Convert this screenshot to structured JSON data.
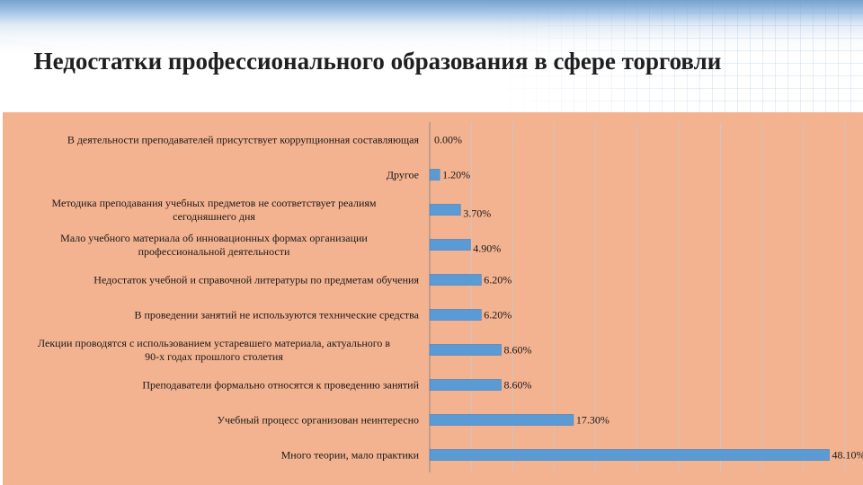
{
  "title": "Недостатки профессионального образования в сфере торговли",
  "colors": {
    "bar": "#5b9bd5",
    "bar_edge": "#3f7fbf",
    "plot_bg": "#f3b290",
    "grid": "#c9c9c9"
  },
  "chart_data": {
    "type": "bar",
    "orientation": "horizontal",
    "title": "Недостатки профессионального образования в сфере торговли",
    "categories": [
      [
        "В деятельности преподавателей присутствует коррупционная составляющая"
      ],
      [
        "Другое"
      ],
      [
        "Методика преподавания учебных предметов не соответствует реалиям",
        "сегодняшнего дня"
      ],
      [
        "Мало учебного материала об инновационных формах организации",
        "профессиональной деятельности"
      ],
      [
        "Недостаток учебной и справочной литературы по предметам обучения"
      ],
      [
        "В проведении занятий не используются технические средства"
      ],
      [
        "Лекции проводятся с использованием устаревшего материала, актуального в",
        "90-х годах прошлого столетия"
      ],
      [
        "Преподаватели формально относятся к проведению занятий"
      ],
      [
        "Учебный процесс организован неинтересно"
      ],
      [
        "Много теории, мало практики"
      ]
    ],
    "values": [
      0.0,
      1.2,
      3.7,
      4.9,
      6.2,
      6.2,
      8.6,
      8.6,
      17.3,
      48.1
    ],
    "value_labels": [
      "0.00%",
      "1.20%",
      "3.70%",
      "4.90%",
      "6.20%",
      "6.20%",
      "8.60%",
      "8.60%",
      "17.30%",
      "48.10%"
    ],
    "xlim": [
      0,
      50
    ],
    "grid": true,
    "legend": "none"
  }
}
